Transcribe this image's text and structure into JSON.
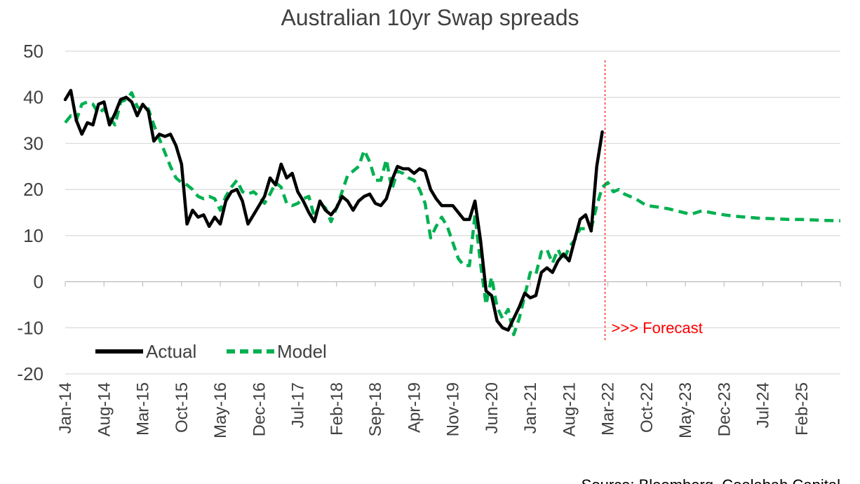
{
  "chart_data": {
    "type": "line",
    "title": "Australian 10yr Swap spreads",
    "xlabel": "",
    "ylabel": "",
    "ylim": [
      -20,
      50
    ],
    "yticks": [
      -20,
      -10,
      0,
      10,
      20,
      30,
      40,
      50
    ],
    "grid": "horizontal",
    "legend_position": "bottom-left",
    "x_tick_labels": [
      "Jan-14",
      "Aug-14",
      "Mar-15",
      "Oct-15",
      "May-16",
      "Dec-16",
      "Jul-17",
      "Feb-18",
      "Sep-18",
      "Apr-19",
      "Nov-19",
      "Jun-20",
      "Jan-21",
      "Aug-21",
      "Mar-22",
      "Oct-22",
      "May-23",
      "Dec-23",
      "Jul-24",
      "Feb-25"
    ],
    "x_start": "Jan-14",
    "x_end": "Sep-25",
    "series": [
      {
        "name": "Actual",
        "style": "solid",
        "color": "#000000",
        "points": [
          [
            "2014-01",
            39.5
          ],
          [
            "2014-02",
            41.5
          ],
          [
            "2014-03",
            35
          ],
          [
            "2014-04",
            32
          ],
          [
            "2014-05",
            34.5
          ],
          [
            "2014-06",
            34
          ],
          [
            "2014-07",
            38.5
          ],
          [
            "2014-08",
            39
          ],
          [
            "2014-09",
            34
          ],
          [
            "2014-10",
            36.5
          ],
          [
            "2014-11",
            39.5
          ],
          [
            "2014-12",
            40
          ],
          [
            "2015-01",
            39
          ],
          [
            "2015-02",
            36
          ],
          [
            "2015-03",
            38.5
          ],
          [
            "2015-04",
            37
          ],
          [
            "2015-05",
            30.5
          ],
          [
            "2015-06",
            32
          ],
          [
            "2015-07",
            31.5
          ],
          [
            "2015-08",
            32
          ],
          [
            "2015-09",
            29.5
          ],
          [
            "2015-10",
            25.5
          ],
          [
            "2015-11",
            12.5
          ],
          [
            "2015-12",
            15.5
          ],
          [
            "2016-01",
            14
          ],
          [
            "2016-02",
            14.5
          ],
          [
            "2016-03",
            12
          ],
          [
            "2016-04",
            14
          ],
          [
            "2016-05",
            12.5
          ],
          [
            "2016-06",
            17.5
          ],
          [
            "2016-07",
            19.5
          ],
          [
            "2016-08",
            20
          ],
          [
            "2016-09",
            17.5
          ],
          [
            "2016-10",
            12.5
          ],
          [
            "2016-11",
            14.5
          ],
          [
            "2016-12",
            16.5
          ],
          [
            "2017-01",
            18.5
          ],
          [
            "2017-02",
            22.5
          ],
          [
            "2017-03",
            21
          ],
          [
            "2017-04",
            25.5
          ],
          [
            "2017-05",
            22.5
          ],
          [
            "2017-06",
            23.5
          ],
          [
            "2017-07",
            19.5
          ],
          [
            "2017-08",
            17.5
          ],
          [
            "2017-09",
            15
          ],
          [
            "2017-10",
            13
          ],
          [
            "2017-11",
            17.5
          ],
          [
            "2017-12",
            15.5
          ],
          [
            "2018-01",
            14.5
          ],
          [
            "2018-02",
            16
          ],
          [
            "2018-03",
            18.5
          ],
          [
            "2018-04",
            17.5
          ],
          [
            "2018-05",
            15.5
          ],
          [
            "2018-06",
            17.5
          ],
          [
            "2018-07",
            18.5
          ],
          [
            "2018-08",
            19
          ],
          [
            "2018-09",
            17
          ],
          [
            "2018-10",
            16.5
          ],
          [
            "2018-11",
            18
          ],
          [
            "2018-12",
            22
          ],
          [
            "2019-01",
            25
          ],
          [
            "2019-02",
            24.5
          ],
          [
            "2019-03",
            24.5
          ],
          [
            "2019-04",
            23.5
          ],
          [
            "2019-05",
            24.5
          ],
          [
            "2019-06",
            24
          ],
          [
            "2019-07",
            20
          ],
          [
            "2019-08",
            18
          ],
          [
            "2019-09",
            16.5
          ],
          [
            "2019-10",
            16.5
          ],
          [
            "2019-11",
            16.5
          ],
          [
            "2019-12",
            15
          ],
          [
            "2020-01",
            13.5
          ],
          [
            "2020-02",
            13.5
          ],
          [
            "2020-03",
            17.5
          ],
          [
            "2020-04",
            9
          ],
          [
            "2020-05",
            -2
          ],
          [
            "2020-06",
            -3
          ],
          [
            "2020-07",
            -8.5
          ],
          [
            "2020-08",
            -10
          ],
          [
            "2020-09",
            -10.5
          ],
          [
            "2020-10",
            -8
          ],
          [
            "2020-11",
            -5.5
          ],
          [
            "2020-12",
            -2.5
          ],
          [
            "2021-01",
            -3.5
          ],
          [
            "2021-02",
            -3
          ],
          [
            "2021-03",
            2
          ],
          [
            "2021-04",
            3
          ],
          [
            "2021-05",
            2
          ],
          [
            "2021-06",
            4.5
          ],
          [
            "2021-07",
            6
          ],
          [
            "2021-08",
            4.5
          ],
          [
            "2021-09",
            9
          ],
          [
            "2021-10",
            13.5
          ],
          [
            "2021-11",
            14.5
          ],
          [
            "2021-12",
            11
          ],
          [
            "2022-01",
            25
          ],
          [
            "2022-02",
            32.5
          ]
        ]
      },
      {
        "name": "Model",
        "style": "dashed",
        "color": "#00b050",
        "points": [
          [
            "2014-01",
            34.5
          ],
          [
            "2014-02",
            36
          ],
          [
            "2014-03",
            35
          ],
          [
            "2014-04",
            38.5
          ],
          [
            "2014-05",
            39
          ],
          [
            "2014-06",
            38.5
          ],
          [
            "2014-07",
            36.5
          ],
          [
            "2014-08",
            37.5
          ],
          [
            "2014-09",
            35.5
          ],
          [
            "2014-10",
            34
          ],
          [
            "2014-11",
            39
          ],
          [
            "2014-12",
            39.5
          ],
          [
            "2015-01",
            41
          ],
          [
            "2015-02",
            38
          ],
          [
            "2015-03",
            37
          ],
          [
            "2015-04",
            37.5
          ],
          [
            "2015-05",
            34
          ],
          [
            "2015-06",
            31
          ],
          [
            "2015-07",
            28
          ],
          [
            "2015-08",
            25
          ],
          [
            "2015-09",
            22.5
          ],
          [
            "2015-10",
            21.5
          ],
          [
            "2015-11",
            21
          ],
          [
            "2015-12",
            20
          ],
          [
            "2016-01",
            18.5
          ],
          [
            "2016-02",
            18
          ],
          [
            "2016-03",
            18.5
          ],
          [
            "2016-04",
            18
          ],
          [
            "2016-05",
            15.5
          ],
          [
            "2016-06",
            18.5
          ],
          [
            "2016-07",
            20.5
          ],
          [
            "2016-08",
            22
          ],
          [
            "2016-09",
            19.5
          ],
          [
            "2016-10",
            19
          ],
          [
            "2016-11",
            19.5
          ],
          [
            "2016-12",
            18.5
          ],
          [
            "2017-01",
            17
          ],
          [
            "2017-02",
            19
          ],
          [
            "2017-03",
            21.5
          ],
          [
            "2017-04",
            20.5
          ],
          [
            "2017-05",
            17
          ],
          [
            "2017-06",
            16.5
          ],
          [
            "2017-07",
            17
          ],
          [
            "2017-08",
            18
          ],
          [
            "2017-09",
            18.5
          ],
          [
            "2017-10",
            14
          ],
          [
            "2017-11",
            17
          ],
          [
            "2017-12",
            16
          ],
          [
            "2018-01",
            13
          ],
          [
            "2018-02",
            16
          ],
          [
            "2018-03",
            19.5
          ],
          [
            "2018-04",
            23
          ],
          [
            "2018-05",
            24
          ],
          [
            "2018-06",
            25
          ],
          [
            "2018-07",
            28.5
          ],
          [
            "2018-08",
            26
          ],
          [
            "2018-09",
            22
          ],
          [
            "2018-10",
            22
          ],
          [
            "2018-11",
            26.5
          ],
          [
            "2018-12",
            20
          ],
          [
            "2019-01",
            24
          ],
          [
            "2019-02",
            23.5
          ],
          [
            "2019-03",
            22.5
          ],
          [
            "2019-04",
            22
          ],
          [
            "2019-05",
            20
          ],
          [
            "2019-06",
            17
          ],
          [
            "2019-07",
            9.5
          ],
          [
            "2019-08",
            12
          ],
          [
            "2019-09",
            14
          ],
          [
            "2019-10",
            12
          ],
          [
            "2019-11",
            8.5
          ],
          [
            "2019-12",
            5
          ],
          [
            "2020-01",
            3.5
          ],
          [
            "2020-02",
            3.5
          ],
          [
            "2020-03",
            14.5
          ],
          [
            "2020-04",
            4
          ],
          [
            "2020-05",
            -5
          ],
          [
            "2020-06",
            1
          ],
          [
            "2020-07",
            -5.5
          ],
          [
            "2020-08",
            -8
          ],
          [
            "2020-09",
            -6
          ],
          [
            "2020-10",
            -11.5
          ],
          [
            "2020-11",
            -8
          ],
          [
            "2020-12",
            -3
          ],
          [
            "2021-01",
            2
          ],
          [
            "2021-02",
            1.5
          ],
          [
            "2021-03",
            6.5
          ],
          [
            "2021-04",
            7
          ],
          [
            "2021-05",
            4
          ],
          [
            "2021-06",
            7
          ],
          [
            "2021-07",
            4.5
          ],
          [
            "2021-08",
            7.5
          ],
          [
            "2021-09",
            9
          ],
          [
            "2021-10",
            11.5
          ],
          [
            "2021-11",
            11.5
          ],
          [
            "2021-12",
            11.5
          ],
          [
            "2022-01",
            16.5
          ],
          [
            "2022-02",
            20.5
          ],
          [
            "2022-03",
            21.5
          ],
          [
            "2022-04",
            19.5
          ],
          [
            "2022-05",
            20
          ],
          [
            "2022-06",
            19
          ],
          [
            "2022-08",
            18
          ],
          [
            "2022-10",
            16.5
          ],
          [
            "2022-12",
            16.2
          ],
          [
            "2023-02",
            15.8
          ],
          [
            "2023-04",
            15.2
          ],
          [
            "2023-06",
            14.6
          ],
          [
            "2023-08",
            15.4
          ],
          [
            "2023-10",
            14.9
          ],
          [
            "2023-12",
            14.5
          ],
          [
            "2024-02",
            14.2
          ],
          [
            "2024-04",
            14.0
          ],
          [
            "2024-06",
            13.8
          ],
          [
            "2024-08",
            13.7
          ],
          [
            "2024-10",
            13.6
          ],
          [
            "2024-12",
            13.5
          ],
          [
            "2025-02",
            13.5
          ],
          [
            "2025-04",
            13.4
          ],
          [
            "2025-06",
            13.3
          ],
          [
            "2025-09",
            13.2
          ]
        ]
      }
    ],
    "forecast_marker": {
      "date": "2022-03",
      "label": ">>> Forecast",
      "color": "#ff0000"
    },
    "source": "Source: Bloomberg, Coolabah Capital"
  }
}
